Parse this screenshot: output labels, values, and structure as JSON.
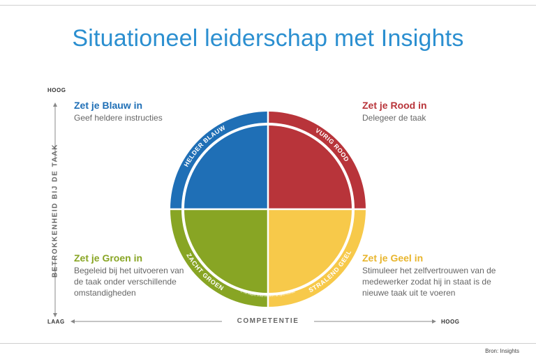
{
  "title": "Situationeel leiderschap met Insights",
  "axes": {
    "y_label": "BETROKKENHEID BIJ DE TAAK",
    "y_high": "HOOG",
    "y_low": "LAAG",
    "x_label": "COMPETENTIE",
    "x_high": "HOOG"
  },
  "quadrants": [
    {
      "id": "blauw",
      "ring_label": "HELDER BLAUW",
      "heading": "Zet je Blauw in",
      "description": "Geef heldere instructies",
      "color": "#1f6fb6"
    },
    {
      "id": "rood",
      "ring_label": "VURIG ROOD",
      "heading": "Zet je Rood in",
      "description": "Delegeer de taak",
      "color": "#b8343a"
    },
    {
      "id": "groen",
      "ring_label": "ZACHT GROEN",
      "heading": "Zet je Groen in",
      "description": "Begeleid bij het uitvoeren van de taak onder verschillende omstandigheden",
      "color": "#88a524"
    },
    {
      "id": "geel",
      "ring_label": "STRALEND GEEL",
      "heading": "Zet je Geel in",
      "description": "Stimuleer het zelfvertrouwen van de medewerker zodat hij in staat is de nieuwe taak uit te voeren",
      "color": "#f2c545"
    }
  ],
  "copyright": "© The Insights Group Ltd, 2017. All rights reserved.",
  "source": "Bron: Insights",
  "colors": {
    "title": "#2b8fd0",
    "axis": "#888888"
  }
}
